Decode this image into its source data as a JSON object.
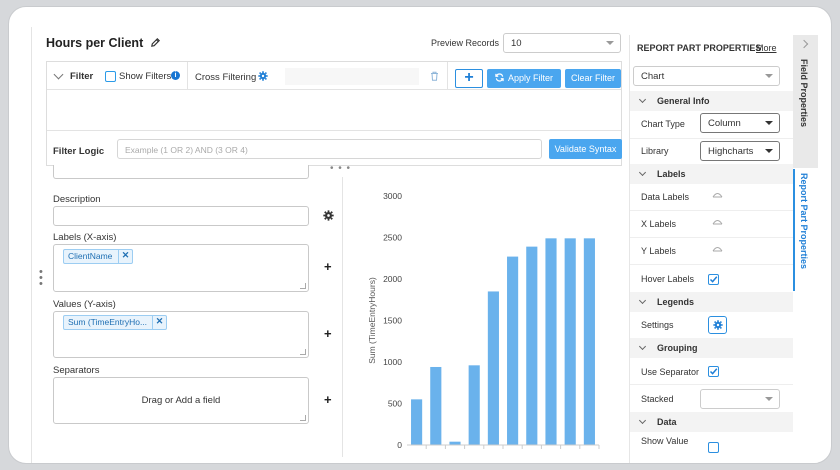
{
  "report": {
    "title": "Hours per Client",
    "preview_label": "Preview Records",
    "preview_value": "10"
  },
  "filter": {
    "label": "Filter",
    "show_filters_label": "Show Filters",
    "show_filters_checked": false,
    "cross_filtering_label": "Cross Filtering",
    "add_label": "+",
    "apply_label": "Apply Filter",
    "clear_label": "Clear Filter",
    "logic_label": "Filter Logic",
    "logic_placeholder": "Example (1 OR 2) AND (3 OR 4)",
    "validate_label": "Validate Syntax"
  },
  "fields": {
    "description_label": "Description",
    "labels_label": "Labels (X-axis)",
    "labels_pill": "ClientName",
    "values_label": "Values (Y-axis)",
    "values_pill": "Sum (TimeEntryHo...",
    "separators_label": "Separators",
    "separators_placeholder": "Drag or Add a field"
  },
  "chart_data": {
    "type": "bar",
    "ylabel": "Sum (TimeEntryHours)",
    "ylim": [
      0,
      3000
    ],
    "yticks": [
      "0",
      "500",
      "1000",
      "1500",
      "2000",
      "2500",
      "3000"
    ],
    "values": [
      550,
      940,
      40,
      960,
      1850,
      2270,
      2390,
      2490,
      2490,
      2490
    ],
    "color": "#6ab2ec"
  },
  "right_panel": {
    "title": "REPORT PART PROPERTIES",
    "more_label": "More",
    "part_type": "Chart",
    "general_info_label": "General Info",
    "chart_type_label": "Chart Type",
    "chart_type_value": "Column",
    "library_label": "Library",
    "library_value": "Highcharts",
    "labels_section": "Labels",
    "data_labels": "Data Labels",
    "x_labels": "X Labels",
    "y_labels": "Y Labels",
    "hover_labels": "Hover Labels",
    "legends_section": "Legends",
    "settings_label": "Settings",
    "grouping_section": "Grouping",
    "use_separator_label": "Use Separator",
    "stacked_label": "Stacked",
    "stacked_value": "",
    "data_section": "Data",
    "show_value_label": "Show Value"
  },
  "tabs": {
    "field_properties": "Field Properties",
    "report_part_properties": "Report Part Properties"
  },
  "colors": {
    "accent": "#2b8fe0",
    "button": "#4aa6ef",
    "bar": "#6ab2ec"
  }
}
